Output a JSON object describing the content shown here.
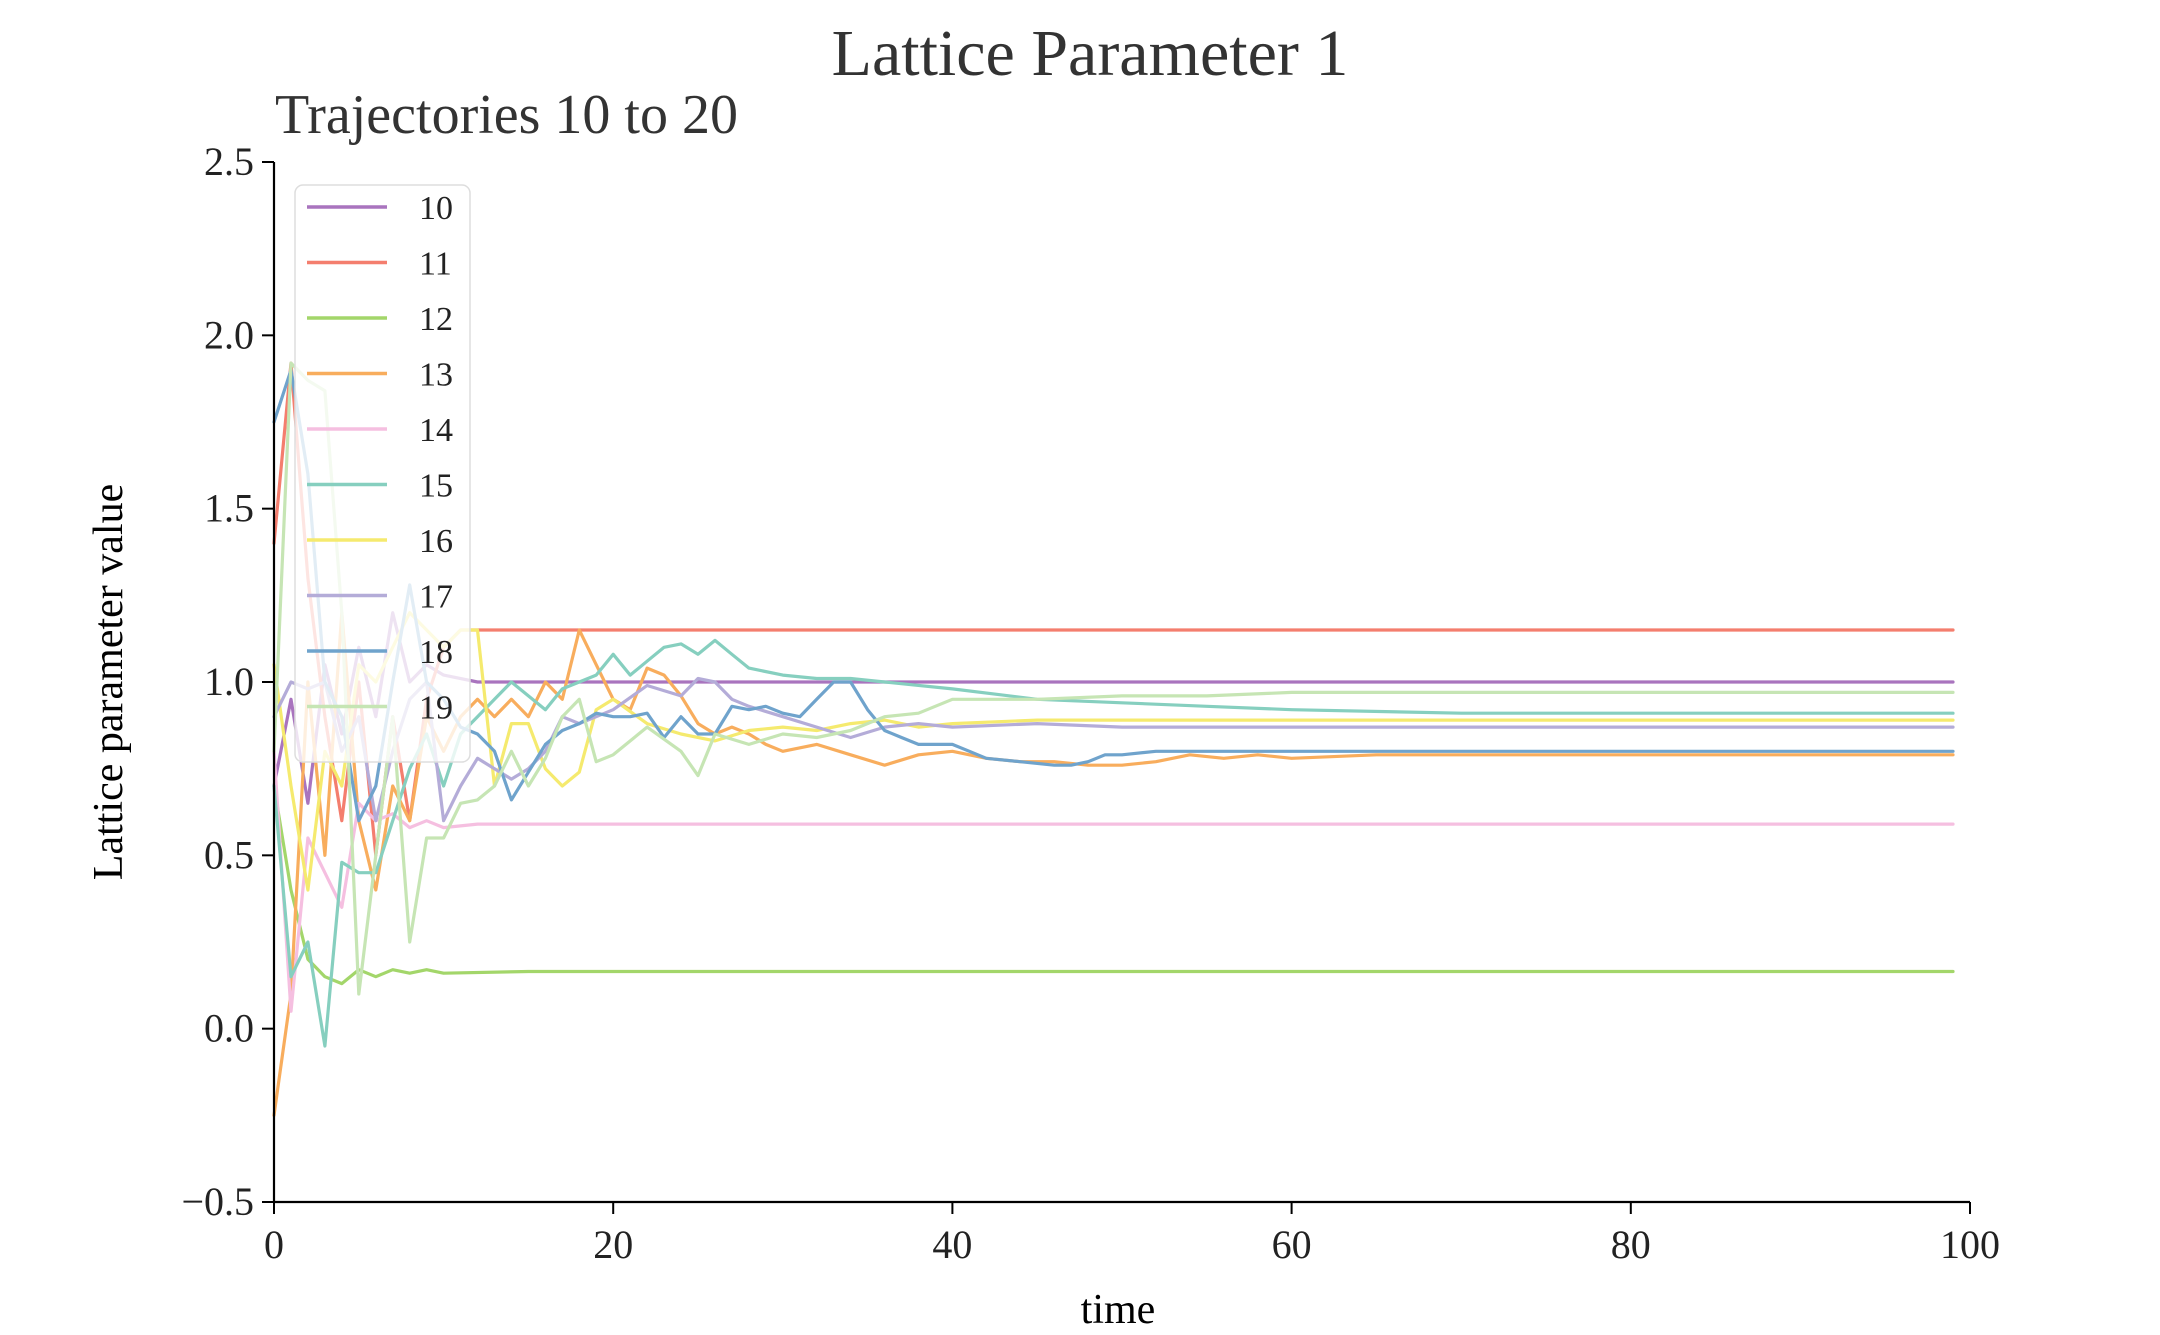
{
  "chart_data": {
    "type": "line",
    "suptitle": "Lattice Parameter 1",
    "title": "Trajectories 10 to 20",
    "xlabel": "time",
    "ylabel": "Lattice parameter value",
    "xlim": [
      0,
      100
    ],
    "ylim": [
      -0.5,
      2.5
    ],
    "xticks": [
      0,
      20,
      40,
      60,
      80,
      100
    ],
    "yticks": [
      -0.5,
      0.0,
      0.5,
      1.0,
      1.5,
      2.0,
      2.5
    ],
    "ytick_labels": [
      "−0.5",
      "0.0",
      "0.5",
      "1.0",
      "1.5",
      "2.0",
      "2.5"
    ],
    "grid": false,
    "legend_position": "upper-left",
    "series": [
      {
        "name": "10",
        "color": "#a974be",
        "x": [
          0,
          1,
          2,
          3,
          4,
          5,
          6,
          7,
          8,
          9,
          10,
          12,
          15,
          20,
          30,
          40,
          50,
          60,
          70,
          80,
          90,
          99
        ],
        "y": [
          0.7,
          0.95,
          0.65,
          1.05,
          0.85,
          1.1,
          0.9,
          1.2,
          1.0,
          1.05,
          1.02,
          1.0,
          1.0,
          1.0,
          1.0,
          1.0,
          1.0,
          1.0,
          1.0,
          1.0,
          1.0,
          1.0
        ]
      },
      {
        "name": "11",
        "color": "#f47e6e",
        "x": [
          0,
          1,
          2,
          3,
          4,
          5,
          6,
          7,
          8,
          9,
          10,
          11,
          12,
          15,
          18,
          20,
          30,
          40,
          50,
          60,
          70,
          80,
          90,
          99
        ],
        "y": [
          1.4,
          1.92,
          1.3,
          0.9,
          0.6,
          1.0,
          0.5,
          0.9,
          0.6,
          0.95,
          1.1,
          1.15,
          1.15,
          1.15,
          1.15,
          1.15,
          1.15,
          1.15,
          1.15,
          1.15,
          1.15,
          1.15,
          1.15,
          1.15
        ]
      },
      {
        "name": "12",
        "color": "#a3d66a",
        "x": [
          0,
          1,
          2,
          3,
          4,
          5,
          6,
          7,
          8,
          9,
          10,
          15,
          20,
          30,
          40,
          50,
          60,
          70,
          80,
          90,
          99
        ],
        "y": [
          0.7,
          0.4,
          0.2,
          0.15,
          0.13,
          0.17,
          0.15,
          0.17,
          0.16,
          0.17,
          0.16,
          0.165,
          0.165,
          0.165,
          0.165,
          0.165,
          0.165,
          0.165,
          0.165,
          0.165,
          0.165
        ]
      },
      {
        "name": "13",
        "color": "#f8ad5d",
        "x": [
          0,
          1,
          2,
          3,
          4,
          5,
          6,
          7,
          8,
          9,
          10,
          11,
          12,
          13,
          14,
          15,
          16,
          17,
          18,
          19,
          20,
          21,
          22,
          23,
          24,
          25,
          26,
          27,
          28,
          29,
          30,
          32,
          34,
          36,
          38,
          40,
          42,
          44,
          46,
          48,
          50,
          52,
          54,
          56,
          58,
          60,
          65,
          70,
          80,
          90,
          99
        ],
        "y": [
          -0.25,
          0.1,
          1.0,
          0.5,
          1.2,
          0.6,
          0.4,
          0.7,
          0.6,
          0.9,
          0.8,
          0.9,
          0.95,
          0.9,
          0.95,
          0.9,
          1.0,
          0.95,
          1.15,
          1.05,
          0.95,
          0.92,
          1.04,
          1.02,
          0.96,
          0.88,
          0.85,
          0.87,
          0.85,
          0.82,
          0.8,
          0.82,
          0.79,
          0.76,
          0.79,
          0.8,
          0.78,
          0.77,
          0.77,
          0.76,
          0.76,
          0.77,
          0.79,
          0.78,
          0.79,
          0.78,
          0.79,
          0.79,
          0.79,
          0.79,
          0.79
        ]
      },
      {
        "name": "14",
        "color": "#f5bfe0",
        "x": [
          0,
          1,
          2,
          3,
          4,
          5,
          6,
          7,
          8,
          9,
          10,
          12,
          14,
          16,
          20,
          30,
          40,
          60,
          80,
          99
        ],
        "y": [
          0.8,
          0.05,
          0.55,
          0.45,
          0.35,
          0.65,
          0.6,
          0.62,
          0.58,
          0.6,
          0.58,
          0.59,
          0.59,
          0.59,
          0.59,
          0.59,
          0.59,
          0.59,
          0.59,
          0.59
        ]
      },
      {
        "name": "15",
        "color": "#86cfbf",
        "x": [
          0,
          1,
          2,
          3,
          4,
          5,
          6,
          7,
          8,
          9,
          10,
          11,
          12,
          13,
          14,
          15,
          16,
          17,
          18,
          19,
          20,
          21,
          22,
          23,
          24,
          25,
          26,
          27,
          28,
          30,
          32,
          34,
          36,
          40,
          45,
          50,
          55,
          60,
          70,
          80,
          90,
          99
        ],
        "y": [
          0.7,
          0.15,
          0.25,
          -0.05,
          0.48,
          0.45,
          0.45,
          0.6,
          0.75,
          0.85,
          0.7,
          0.85,
          0.9,
          0.95,
          1.0,
          0.96,
          0.92,
          0.98,
          1.0,
          1.02,
          1.08,
          1.02,
          1.06,
          1.1,
          1.11,
          1.08,
          1.12,
          1.08,
          1.04,
          1.02,
          1.01,
          1.01,
          1.0,
          0.98,
          0.95,
          0.94,
          0.93,
          0.92,
          0.91,
          0.91,
          0.91,
          0.91
        ]
      },
      {
        "name": "16",
        "color": "#f5ea6e",
        "x": [
          0,
          1,
          2,
          3,
          4,
          5,
          6,
          7,
          8,
          9,
          10,
          11,
          12,
          13,
          14,
          15,
          16,
          17,
          18,
          19,
          20,
          22,
          24,
          26,
          28,
          30,
          32,
          34,
          36,
          38,
          40,
          45,
          50,
          60,
          70,
          80,
          90,
          99
        ],
        "y": [
          1.05,
          0.7,
          0.4,
          0.8,
          0.7,
          1.05,
          1.0,
          1.1,
          1.2,
          1.15,
          1.1,
          1.15,
          1.15,
          0.7,
          0.88,
          0.88,
          0.75,
          0.7,
          0.74,
          0.92,
          0.95,
          0.88,
          0.85,
          0.83,
          0.86,
          0.87,
          0.86,
          0.88,
          0.89,
          0.87,
          0.88,
          0.89,
          0.89,
          0.89,
          0.89,
          0.89,
          0.89,
          0.89
        ]
      },
      {
        "name": "17",
        "color": "#b4acd8",
        "x": [
          0,
          1,
          2,
          3,
          4,
          5,
          6,
          7,
          8,
          9,
          10,
          11,
          12,
          13,
          14,
          15,
          16,
          17,
          18,
          19,
          20,
          22,
          24,
          25,
          26,
          27,
          28,
          30,
          32,
          34,
          36,
          38,
          40,
          45,
          50,
          55,
          60,
          70,
          80,
          90,
          99
        ],
        "y": [
          0.9,
          1.0,
          0.98,
          1.0,
          0.8,
          0.9,
          0.6,
          0.8,
          0.95,
          1.0,
          0.6,
          0.7,
          0.78,
          0.75,
          0.72,
          0.75,
          0.8,
          0.9,
          0.88,
          0.9,
          0.92,
          0.99,
          0.96,
          1.01,
          1.0,
          0.95,
          0.93,
          0.9,
          0.87,
          0.84,
          0.87,
          0.88,
          0.87,
          0.88,
          0.87,
          0.87,
          0.87,
          0.87,
          0.87,
          0.87,
          0.87
        ]
      },
      {
        "name": "18",
        "color": "#6fa3cc",
        "x": [
          0,
          1,
          2,
          3,
          4,
          5,
          6,
          7,
          8,
          9,
          10,
          11,
          12,
          13,
          14,
          15,
          16,
          17,
          18,
          19,
          20,
          21,
          22,
          23,
          24,
          25,
          26,
          27,
          28,
          29,
          30,
          31,
          32,
          33,
          34,
          35,
          36,
          37,
          38,
          39,
          40,
          41,
          42,
          44,
          46,
          47,
          48,
          49,
          50,
          52,
          55,
          60,
          70,
          80,
          90,
          99
        ],
        "y": [
          1.75,
          1.9,
          1.6,
          1.0,
          0.9,
          0.6,
          0.7,
          1.0,
          1.28,
          1.0,
          0.95,
          0.87,
          0.85,
          0.8,
          0.66,
          0.74,
          0.82,
          0.86,
          0.88,
          0.91,
          0.9,
          0.9,
          0.91,
          0.84,
          0.9,
          0.85,
          0.85,
          0.93,
          0.92,
          0.93,
          0.91,
          0.9,
          0.95,
          1.0,
          1.0,
          0.92,
          0.86,
          0.84,
          0.82,
          0.82,
          0.82,
          0.8,
          0.78,
          0.77,
          0.76,
          0.76,
          0.77,
          0.79,
          0.79,
          0.8,
          0.8,
          0.8,
          0.8,
          0.8,
          0.8,
          0.8
        ]
      },
      {
        "name": "19",
        "color": "#c6e5b4",
        "x": [
          0,
          1,
          2,
          3,
          4,
          5,
          6,
          7,
          8,
          9,
          10,
          11,
          12,
          13,
          14,
          15,
          16,
          17,
          18,
          19,
          20,
          22,
          24,
          25,
          26,
          28,
          30,
          32,
          34,
          36,
          38,
          40,
          45,
          50,
          55,
          60,
          70,
          80,
          90,
          99
        ],
        "y": [
          0.8,
          1.92,
          1.87,
          1.84,
          1.2,
          0.1,
          0.5,
          0.9,
          0.25,
          0.55,
          0.55,
          0.65,
          0.66,
          0.7,
          0.8,
          0.7,
          0.78,
          0.9,
          0.95,
          0.77,
          0.79,
          0.87,
          0.8,
          0.73,
          0.85,
          0.82,
          0.85,
          0.84,
          0.86,
          0.9,
          0.91,
          0.95,
          0.95,
          0.96,
          0.96,
          0.97,
          0.97,
          0.97,
          0.97,
          0.97
        ]
      }
    ]
  }
}
